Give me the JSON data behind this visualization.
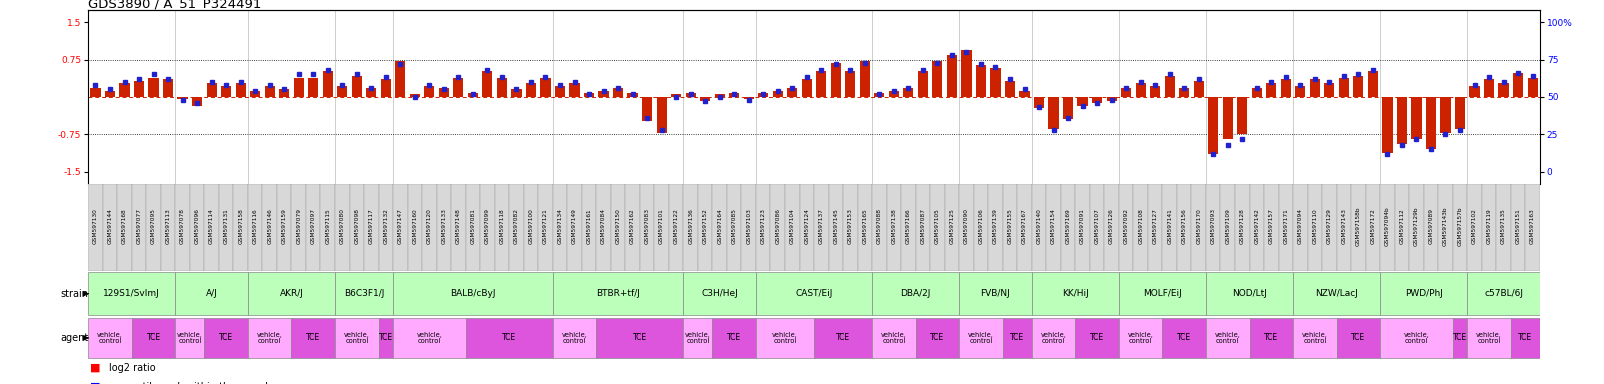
{
  "title": "GDS3890 / A_51_P324491",
  "bar_color": "#cc2200",
  "dot_color": "#2222cc",
  "zero_line_color": "#cc0000",
  "hline_color": "#333333",
  "strain_bg": "#bbffbb",
  "vehicle_bg": "#ffaaff",
  "tce_bg": "#dd44dd",
  "gsm_bg": "#dddddd",
  "samples": [
    [
      "GSM597130",
      0.18,
      58,
      "129S1/SvImJ",
      "vehicle"
    ],
    [
      "GSM597144",
      0.12,
      55,
      "129S1/SvImJ",
      "vehicle"
    ],
    [
      "GSM597168",
      0.28,
      60,
      "129S1/SvImJ",
      "vehicle"
    ],
    [
      "GSM597077",
      0.32,
      62,
      "129S1/SvImJ",
      "TCE"
    ],
    [
      "GSM597095",
      0.38,
      65,
      "129S1/SvImJ",
      "TCE"
    ],
    [
      "GSM597113",
      0.35,
      62,
      "129S1/SvImJ",
      "TCE"
    ],
    [
      "GSM597078",
      -0.05,
      48,
      "A/J",
      "vehicle"
    ],
    [
      "GSM597096",
      -0.18,
      46,
      "A/J",
      "vehicle"
    ],
    [
      "GSM597114",
      0.28,
      60,
      "A/J",
      "TCE"
    ],
    [
      "GSM597131",
      0.22,
      58,
      "A/J",
      "TCE"
    ],
    [
      "GSM597158",
      0.28,
      60,
      "A/J",
      "TCE"
    ],
    [
      "GSM597116",
      0.12,
      54,
      "AKR/J",
      "vehicle"
    ],
    [
      "GSM597146",
      0.22,
      58,
      "AKR/J",
      "vehicle"
    ],
    [
      "GSM597159",
      0.15,
      55,
      "AKR/J",
      "vehicle"
    ],
    [
      "GSM597079",
      0.38,
      65,
      "AKR/J",
      "TCE"
    ],
    [
      "GSM597097",
      0.38,
      65,
      "AKR/J",
      "TCE"
    ],
    [
      "GSM597115",
      0.52,
      68,
      "AKR/J",
      "TCE"
    ],
    [
      "GSM597080",
      0.22,
      58,
      "B6C3F1/J",
      "vehicle"
    ],
    [
      "GSM597098",
      0.42,
      65,
      "B6C3F1/J",
      "vehicle"
    ],
    [
      "GSM597117",
      0.18,
      56,
      "B6C3F1/J",
      "vehicle"
    ],
    [
      "GSM597132",
      0.35,
      63,
      "B6C3F1/J",
      "TCE"
    ],
    [
      "GSM597147",
      0.72,
      72,
      "BALB/cByJ",
      "vehicle"
    ],
    [
      "GSM597160",
      0.05,
      50,
      "BALB/cByJ",
      "vehicle"
    ],
    [
      "GSM597120",
      0.22,
      58,
      "BALB/cByJ",
      "vehicle"
    ],
    [
      "GSM597133",
      0.18,
      55,
      "BALB/cByJ",
      "vehicle"
    ],
    [
      "GSM597148",
      0.38,
      63,
      "BALB/cByJ",
      "vehicle"
    ],
    [
      "GSM597081",
      0.08,
      52,
      "BALB/cByJ",
      "TCE"
    ],
    [
      "GSM597099",
      0.52,
      68,
      "BALB/cByJ",
      "TCE"
    ],
    [
      "GSM597118",
      0.38,
      63,
      "BALB/cByJ",
      "TCE"
    ],
    [
      "GSM597082",
      0.15,
      55,
      "BALB/cByJ",
      "TCE"
    ],
    [
      "GSM597100",
      0.28,
      60,
      "BALB/cByJ",
      "TCE"
    ],
    [
      "GSM597121",
      0.38,
      63,
      "BALB/cByJ",
      "TCE"
    ],
    [
      "GSM597134",
      0.22,
      58,
      "BTBR+tf/J",
      "vehicle"
    ],
    [
      "GSM597149",
      0.28,
      60,
      "BTBR+tf/J",
      "vehicle"
    ],
    [
      "GSM597161",
      0.08,
      52,
      "BTBR+tf/J",
      "vehicle"
    ],
    [
      "GSM597084",
      0.12,
      54,
      "BTBR+tf/J",
      "TCE"
    ],
    [
      "GSM597150",
      0.18,
      56,
      "BTBR+tf/J",
      "TCE"
    ],
    [
      "GSM597162",
      0.08,
      52,
      "BTBR+tf/J",
      "TCE"
    ],
    [
      "GSM597083",
      -0.48,
      36,
      "BTBR+tf/J",
      "TCE"
    ],
    [
      "GSM597101",
      -0.72,
      28,
      "BTBR+tf/J",
      "TCE"
    ],
    [
      "GSM597122",
      0.05,
      50,
      "BTBR+tf/J",
      "TCE"
    ],
    [
      "GSM597136",
      0.08,
      52,
      "C3H/HeJ",
      "vehicle"
    ],
    [
      "GSM597152",
      -0.08,
      47,
      "C3H/HeJ",
      "vehicle"
    ],
    [
      "GSM597164",
      0.05,
      50,
      "C3H/HeJ",
      "TCE"
    ],
    [
      "GSM597085",
      0.08,
      52,
      "C3H/HeJ",
      "TCE"
    ],
    [
      "GSM597103",
      -0.05,
      48,
      "C3H/HeJ",
      "TCE"
    ],
    [
      "GSM597123",
      0.08,
      52,
      "CAST/EiJ",
      "vehicle"
    ],
    [
      "GSM597086",
      0.12,
      54,
      "CAST/EiJ",
      "vehicle"
    ],
    [
      "GSM597104",
      0.18,
      56,
      "CAST/EiJ",
      "vehicle"
    ],
    [
      "GSM597124",
      0.35,
      63,
      "CAST/EiJ",
      "vehicle"
    ],
    [
      "GSM597137",
      0.52,
      68,
      "CAST/EiJ",
      "TCE"
    ],
    [
      "GSM597145",
      0.68,
      72,
      "CAST/EiJ",
      "TCE"
    ],
    [
      "GSM597153",
      0.52,
      68,
      "CAST/EiJ",
      "TCE"
    ],
    [
      "GSM597165",
      0.72,
      73,
      "CAST/EiJ",
      "TCE"
    ],
    [
      "GSM597088",
      0.08,
      52,
      "DBA/2J",
      "vehicle"
    ],
    [
      "GSM597138",
      0.12,
      54,
      "DBA/2J",
      "vehicle"
    ],
    [
      "GSM597166",
      0.18,
      56,
      "DBA/2J",
      "vehicle"
    ],
    [
      "GSM597087",
      0.52,
      68,
      "DBA/2J",
      "TCE"
    ],
    [
      "GSM597105",
      0.72,
      73,
      "DBA/2J",
      "TCE"
    ],
    [
      "GSM597125",
      0.85,
      78,
      "DBA/2J",
      "TCE"
    ],
    [
      "GSM597090",
      0.95,
      80,
      "FVB/NJ",
      "vehicle"
    ],
    [
      "GSM597106",
      0.65,
      72,
      "FVB/NJ",
      "vehicle"
    ],
    [
      "GSM597139",
      0.58,
      70,
      "FVB/NJ",
      "vehicle"
    ],
    [
      "GSM597155",
      0.32,
      62,
      "FVB/NJ",
      "TCE"
    ],
    [
      "GSM597167",
      0.12,
      55,
      "FVB/NJ",
      "TCE"
    ],
    [
      "GSM597140",
      -0.22,
      43,
      "KK/HiJ",
      "vehicle"
    ],
    [
      "GSM597154",
      -0.65,
      28,
      "KK/HiJ",
      "vehicle"
    ],
    [
      "GSM597169",
      -0.45,
      36,
      "KK/HiJ",
      "vehicle"
    ],
    [
      "GSM597091",
      -0.18,
      44,
      "KK/HiJ",
      "TCE"
    ],
    [
      "GSM597107",
      -0.12,
      46,
      "KK/HiJ",
      "TCE"
    ],
    [
      "GSM597126",
      -0.08,
      48,
      "KK/HiJ",
      "TCE"
    ],
    [
      "GSM597092",
      0.18,
      56,
      "MOLF/EiJ",
      "vehicle"
    ],
    [
      "GSM597108",
      0.28,
      60,
      "MOLF/EiJ",
      "vehicle"
    ],
    [
      "GSM597127",
      0.22,
      58,
      "MOLF/EiJ",
      "vehicle"
    ],
    [
      "GSM597141",
      0.42,
      65,
      "MOLF/EiJ",
      "TCE"
    ],
    [
      "GSM597156",
      0.18,
      56,
      "MOLF/EiJ",
      "TCE"
    ],
    [
      "GSM597170",
      0.32,
      62,
      "MOLF/EiJ",
      "TCE"
    ],
    [
      "GSM597093",
      -1.15,
      12,
      "NOD/LtJ",
      "vehicle"
    ],
    [
      "GSM597109",
      -0.85,
      18,
      "NOD/LtJ",
      "vehicle"
    ],
    [
      "GSM597128",
      -0.75,
      22,
      "NOD/LtJ",
      "vehicle"
    ],
    [
      "GSM597142",
      0.18,
      56,
      "NOD/LtJ",
      "TCE"
    ],
    [
      "GSM597157",
      0.28,
      60,
      "NOD/LtJ",
      "TCE"
    ],
    [
      "GSM597171",
      0.35,
      63,
      "NOD/LtJ",
      "TCE"
    ],
    [
      "GSM597094",
      0.22,
      58,
      "NZW/LacJ",
      "vehicle"
    ],
    [
      "GSM597110",
      0.35,
      62,
      "NZW/LacJ",
      "vehicle"
    ],
    [
      "GSM597129",
      0.28,
      60,
      "NZW/LacJ",
      "vehicle"
    ],
    [
      "GSM597143",
      0.38,
      64,
      "NZW/LacJ",
      "TCE"
    ],
    [
      "GSM597158b",
      0.42,
      65,
      "NZW/LacJ",
      "TCE"
    ],
    [
      "GSM597172",
      0.52,
      68,
      "NZW/LacJ",
      "TCE"
    ],
    [
      "GSM597094b",
      -1.12,
      12,
      "PWD/PhJ",
      "vehicle"
    ],
    [
      "GSM597112",
      -0.95,
      18,
      "PWD/PhJ",
      "vehicle"
    ],
    [
      "GSM597129b",
      -0.85,
      22,
      "PWD/PhJ",
      "vehicle"
    ],
    [
      "GSM597089",
      -1.05,
      15,
      "PWD/PhJ",
      "vehicle"
    ],
    [
      "GSM597143b",
      -0.72,
      25,
      "PWD/PhJ",
      "vehicle"
    ],
    [
      "GSM597157b",
      -0.65,
      28,
      "PWD/PhJ",
      "TCE"
    ],
    [
      "GSM597102",
      0.22,
      58,
      "c57BL/6J",
      "vehicle"
    ],
    [
      "GSM597119",
      0.35,
      63,
      "c57BL/6J",
      "vehicle"
    ],
    [
      "GSM597135",
      0.28,
      60,
      "c57BL/6J",
      "vehicle"
    ],
    [
      "GSM597151",
      0.48,
      66,
      "c57BL/6J",
      "TCE"
    ],
    [
      "GSM597163",
      0.38,
      64,
      "c57BL/6J",
      "TCE"
    ]
  ],
  "strain_order": [
    "129S1/SvImJ",
    "A/J",
    "AKR/J",
    "B6C3F1/J",
    "BALB/cByJ",
    "BTBR+tf/J",
    "C3H/HeJ",
    "CAST/EiJ",
    "DBA/2J",
    "FVB/NJ",
    "KK/HiJ",
    "MOLF/EiJ",
    "NOD/LtJ",
    "NZW/LacJ",
    "PWD/PhJ",
    "c57BL/6J"
  ]
}
